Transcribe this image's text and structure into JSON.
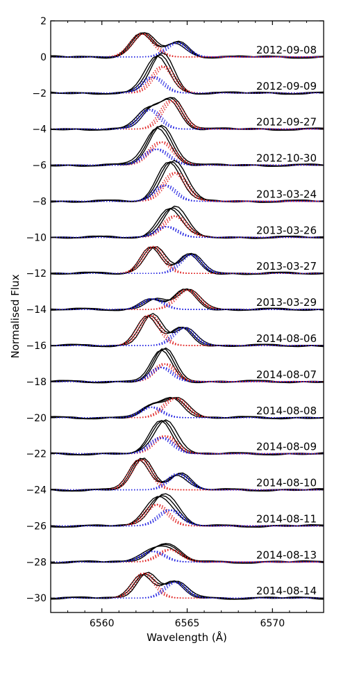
{
  "chart_data": {
    "type": "line",
    "xlabel": "Wavelength (Å)",
    "ylabel": "Normalised Flux",
    "xlim": [
      6557,
      6573
    ],
    "ylim": [
      -30.8,
      2
    ],
    "x_ticks": [
      6560,
      6565,
      6570
    ],
    "y_ticks": [
      2,
      0,
      -2,
      -4,
      -6,
      -8,
      -10,
      -12,
      -14,
      -16,
      -18,
      -20,
      -22,
      -24,
      -26,
      -28,
      -30
    ],
    "grid": false,
    "colors": {
      "observed": "#000000",
      "component_a": "#e02020",
      "component_b": "#1f1fe0"
    },
    "spectra": [
      {
        "date": "2012-09-08",
        "baseline": 0,
        "a": {
          "center": 6562.4,
          "amp": 1.3,
          "sigma": 0.65
        },
        "b": {
          "center": 6564.4,
          "amp": 0.8,
          "sigma": 0.6
        }
      },
      {
        "date": "2012-09-09",
        "baseline": -2,
        "a": {
          "center": 6563.6,
          "amp": 1.5,
          "sigma": 0.6
        },
        "b": {
          "center": 6563.0,
          "amp": 0.9,
          "sigma": 0.6
        }
      },
      {
        "date": "2012-09-27",
        "baseline": -4,
        "a": {
          "center": 6564.1,
          "amp": 1.6,
          "sigma": 0.6
        },
        "b": {
          "center": 6562.8,
          "amp": 1.1,
          "sigma": 0.6
        }
      },
      {
        "date": "2012-10-30",
        "baseline": -6,
        "a": {
          "center": 6563.5,
          "amp": 1.3,
          "sigma": 0.7
        },
        "b": {
          "center": 6563.2,
          "amp": 0.9,
          "sigma": 0.7
        }
      },
      {
        "date": "2013-03-24",
        "baseline": -8,
        "a": {
          "center": 6564.3,
          "amp": 1.6,
          "sigma": 0.65
        },
        "b": {
          "center": 6563.7,
          "amp": 0.9,
          "sigma": 0.6
        }
      },
      {
        "date": "2013-03-26",
        "baseline": -10,
        "a": {
          "center": 6564.3,
          "amp": 1.2,
          "sigma": 0.65
        },
        "b": {
          "center": 6563.8,
          "amp": 0.6,
          "sigma": 0.6
        }
      },
      {
        "date": "2013-03-27",
        "baseline": -12,
        "a": {
          "center": 6563.0,
          "amp": 1.5,
          "sigma": 0.6
        },
        "b": {
          "center": 6565.2,
          "amp": 1.05,
          "sigma": 0.6
        }
      },
      {
        "date": "2013-03-29",
        "baseline": -14,
        "a": {
          "center": 6565.0,
          "amp": 1.1,
          "sigma": 0.65
        },
        "b": {
          "center": 6563.0,
          "amp": 0.6,
          "sigma": 0.6
        }
      },
      {
        "date": "2014-08-06",
        "baseline": -16,
        "a": {
          "center": 6562.8,
          "amp": 1.7,
          "sigma": 0.6
        },
        "b": {
          "center": 6564.8,
          "amp": 1.0,
          "sigma": 0.6
        }
      },
      {
        "date": "2014-08-07",
        "baseline": -18,
        "a": {
          "center": 6563.7,
          "amp": 1.0,
          "sigma": 0.6
        },
        "b": {
          "center": 6563.5,
          "amp": 0.8,
          "sigma": 0.6
        }
      },
      {
        "date": "2014-08-08",
        "baseline": -20,
        "a": {
          "center": 6564.3,
          "amp": 1.1,
          "sigma": 0.65
        },
        "b": {
          "center": 6562.9,
          "amp": 0.6,
          "sigma": 0.6
        }
      },
      {
        "date": "2014-08-09",
        "baseline": -22,
        "a": {
          "center": 6563.7,
          "amp": 1.0,
          "sigma": 0.65
        },
        "b": {
          "center": 6563.5,
          "amp": 0.9,
          "sigma": 0.65
        }
      },
      {
        "date": "2014-08-10",
        "baseline": -24,
        "a": {
          "center": 6562.3,
          "amp": 1.7,
          "sigma": 0.6
        },
        "b": {
          "center": 6564.5,
          "amp": 0.9,
          "sigma": 0.6
        }
      },
      {
        "date": "2014-08-11",
        "baseline": -26,
        "a": {
          "center": 6563.2,
          "amp": 1.2,
          "sigma": 0.65
        },
        "b": {
          "center": 6564.0,
          "amp": 0.9,
          "sigma": 0.65
        }
      },
      {
        "date": "2014-08-13",
        "baseline": -28,
        "a": {
          "center": 6564.0,
          "amp": 0.7,
          "sigma": 0.65
        },
        "b": {
          "center": 6563.0,
          "amp": 0.6,
          "sigma": 0.65
        }
      },
      {
        "date": "2014-08-14",
        "baseline": -30,
        "a": {
          "center": 6562.5,
          "amp": 1.4,
          "sigma": 0.6
        },
        "b": {
          "center": 6564.3,
          "amp": 0.9,
          "sigma": 0.6
        }
      }
    ]
  }
}
